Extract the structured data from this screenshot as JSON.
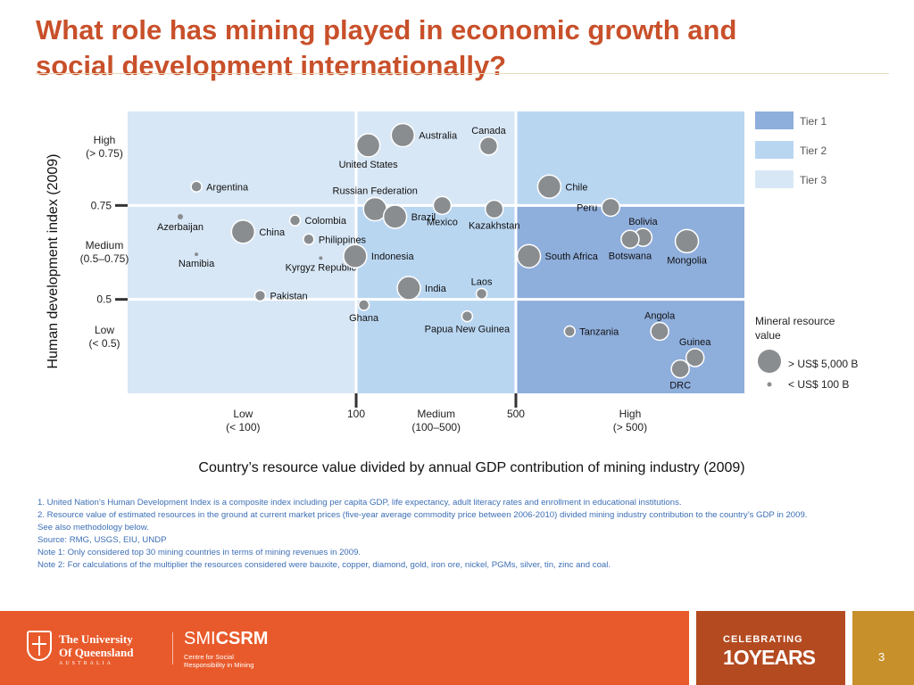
{
  "slide": {
    "title_line1": "What role has mining played in economic growth and",
    "title_line2": "social development internationally?",
    "page_number": "3"
  },
  "chart_data": {
    "type": "scatter",
    "xlabel": "Country’s resource value divided by annual GDP contribution of mining industry (2009)",
    "ylabel": "Human development index (2009)",
    "x_scale": "log",
    "xlim": [
      10,
      5000
    ],
    "ylim": [
      0.25,
      1.0
    ],
    "x_ticks": [
      {
        "value": 100,
        "label": "100"
      },
      {
        "value": 500,
        "label": "500"
      }
    ],
    "y_ticks": [
      {
        "value": 0.75,
        "label": "0.75"
      },
      {
        "value": 0.5,
        "label": "0.5"
      }
    ],
    "x_bands": [
      {
        "label_line1": "Low",
        "label_line2": "(< 100)",
        "center": 32
      },
      {
        "label_line1": "Medium",
        "label_line2": "(100–500)",
        "center": 224
      },
      {
        "label_line1": "High",
        "label_line2": "(> 500)",
        "center": 1580
      }
    ],
    "y_bands": [
      {
        "label_line1": "High",
        "label_line2": "(> 0.75)",
        "center": 0.905
      },
      {
        "label_line1": "Medium",
        "label_line2": "(0.5–0.75)",
        "center": 0.625
      },
      {
        "label_line1": "Low",
        "label_line2": "(< 0.5)",
        "center": 0.4
      }
    ],
    "tiers": [
      {
        "name": "Tier 1",
        "color": "#8eaedc"
      },
      {
        "name": "Tier 2",
        "color": "#b9d6f1"
      },
      {
        "name": "Tier 3",
        "color": "#d8e7f6"
      }
    ],
    "regions": [
      {
        "x": [
          10,
          100
        ],
        "y": [
          0.25,
          1.0
        ],
        "tier": 3
      },
      {
        "x": [
          100,
          500
        ],
        "y": [
          0.75,
          1.0
        ],
        "tier": 3
      },
      {
        "x": [
          100,
          500
        ],
        "y": [
          0.25,
          0.75
        ],
        "tier": 2
      },
      {
        "x": [
          500,
          5000
        ],
        "y": [
          0.75,
          1.0
        ],
        "tier": 2
      },
      {
        "x": [
          500,
          5000
        ],
        "y": [
          0.25,
          0.75
        ],
        "tier": 1
      }
    ],
    "size_legend": {
      "title_line1": "Mineral resource",
      "title_line2": "value",
      "large_label": "> US$ 5,000 B",
      "small_label": "< US$ 100 B"
    },
    "points": [
      {
        "name": "Australia",
        "x": 160,
        "y": 0.937,
        "size": 13,
        "label_pos": "right"
      },
      {
        "name": "Canada",
        "x": 380,
        "y": 0.908,
        "size": 10,
        "label_pos": "top"
      },
      {
        "name": "United States",
        "x": 113,
        "y": 0.91,
        "size": 13,
        "label_pos": "bottom"
      },
      {
        "name": "Argentina",
        "x": 20,
        "y": 0.8,
        "size": 6,
        "label_pos": "right"
      },
      {
        "name": "Chile",
        "x": 700,
        "y": 0.8,
        "size": 13,
        "label_pos": "right"
      },
      {
        "name": "Russian Federation",
        "x": 121,
        "y": 0.74,
        "size": 13,
        "label_pos": "top"
      },
      {
        "name": "Mexico",
        "x": 238,
        "y": 0.75,
        "size": 10,
        "label_pos": "bottom"
      },
      {
        "name": "Brazil",
        "x": 148,
        "y": 0.72,
        "size": 13,
        "label_pos": "right"
      },
      {
        "name": "Kazakhstan",
        "x": 402,
        "y": 0.74,
        "size": 10,
        "label_pos": "bottom"
      },
      {
        "name": "Peru",
        "x": 1300,
        "y": 0.745,
        "size": 10,
        "label_pos": "left"
      },
      {
        "name": "Bolivia",
        "x": 1800,
        "y": 0.665,
        "size": 10,
        "label_pos": "top"
      },
      {
        "name": "Botswana",
        "x": 1580,
        "y": 0.66,
        "size": 10,
        "label_pos": "bottom"
      },
      {
        "name": "Mongolia",
        "x": 2800,
        "y": 0.655,
        "size": 13,
        "label_pos": "bottom"
      },
      {
        "name": "South Africa",
        "x": 570,
        "y": 0.615,
        "size": 13,
        "label_pos": "right"
      },
      {
        "name": "Azerbaijan",
        "x": 17,
        "y": 0.72,
        "size": 3,
        "label_pos": "bottom"
      },
      {
        "name": "China",
        "x": 32,
        "y": 0.68,
        "size": 13,
        "label_pos": "right"
      },
      {
        "name": "Colombia",
        "x": 54,
        "y": 0.71,
        "size": 6,
        "label_pos": "right"
      },
      {
        "name": "Philippines",
        "x": 62,
        "y": 0.66,
        "size": 6,
        "label_pos": "right"
      },
      {
        "name": "Namibia",
        "x": 20,
        "y": 0.62,
        "size": 2,
        "label_pos": "bottom"
      },
      {
        "name": "Kyrgyz Republic",
        "x": 70,
        "y": 0.61,
        "size": 2,
        "label_pos": "bottom"
      },
      {
        "name": "Indonesia",
        "x": 99,
        "y": 0.615,
        "size": 13,
        "label_pos": "right"
      },
      {
        "name": "Pakistan",
        "x": 38,
        "y": 0.51,
        "size": 6,
        "label_pos": "right"
      },
      {
        "name": "India",
        "x": 170,
        "y": 0.53,
        "size": 13,
        "label_pos": "right"
      },
      {
        "name": "Laos",
        "x": 354,
        "y": 0.515,
        "size": 6,
        "label_pos": "top"
      },
      {
        "name": "Ghana",
        "x": 108,
        "y": 0.485,
        "size": 6,
        "label_pos": "bottom"
      },
      {
        "name": "Papua New Guinea",
        "x": 306,
        "y": 0.455,
        "size": 6,
        "label_pos": "bottom"
      },
      {
        "name": "Angola",
        "x": 2130,
        "y": 0.415,
        "size": 10,
        "label_pos": "top"
      },
      {
        "name": "Tanzania",
        "x": 860,
        "y": 0.415,
        "size": 6,
        "label_pos": "right"
      },
      {
        "name": "Guinea",
        "x": 3040,
        "y": 0.345,
        "size": 10,
        "label_pos": "top"
      },
      {
        "name": "DRC",
        "x": 2620,
        "y": 0.315,
        "size": 10,
        "label_pos": "bottom"
      }
    ]
  },
  "notes": [
    "1. United Nation’s Human Development Index is a composite index including per capita GDP, life expectancy, adult literacy rates and enrollment in educational institutions.",
    "2. Resource value of estimated resources in the ground at current market prices (five-year average commodity price between 2006-2010) divided mining industry contribution to the country’s GDP in 2009.",
    "See also methodology below.",
    "Source: RMG, USGS, EIU, UNDP",
    "Note 1: Only considered top 30 mining countries in terms of mining revenues in 2009.",
    "Note 2: For calculations of the multiplier the resources considered were bauxite, copper, diamond, gold, iron ore, nickel, PGMs, silver, tin, zinc and coal."
  ],
  "footer": {
    "uq_line1": "The University",
    "uq_line2": "Of Queensland",
    "uq_line3": "AUSTRALIA",
    "smi_light": "SMI",
    "smi_bold": "CSRM",
    "smi_sub_line1": "Centre for Social",
    "smi_sub_line2": "Responsibility in Mining",
    "celebrating": "CELEBRATING",
    "years": "1OYEARS"
  },
  "colors": {
    "title": "#c8502a",
    "notes": "#3d6fb5",
    "point": "#8a8d90",
    "footer_main": "#e85a2b",
    "footer_mid": "#b44a20",
    "footer_right": "#c8902b"
  }
}
